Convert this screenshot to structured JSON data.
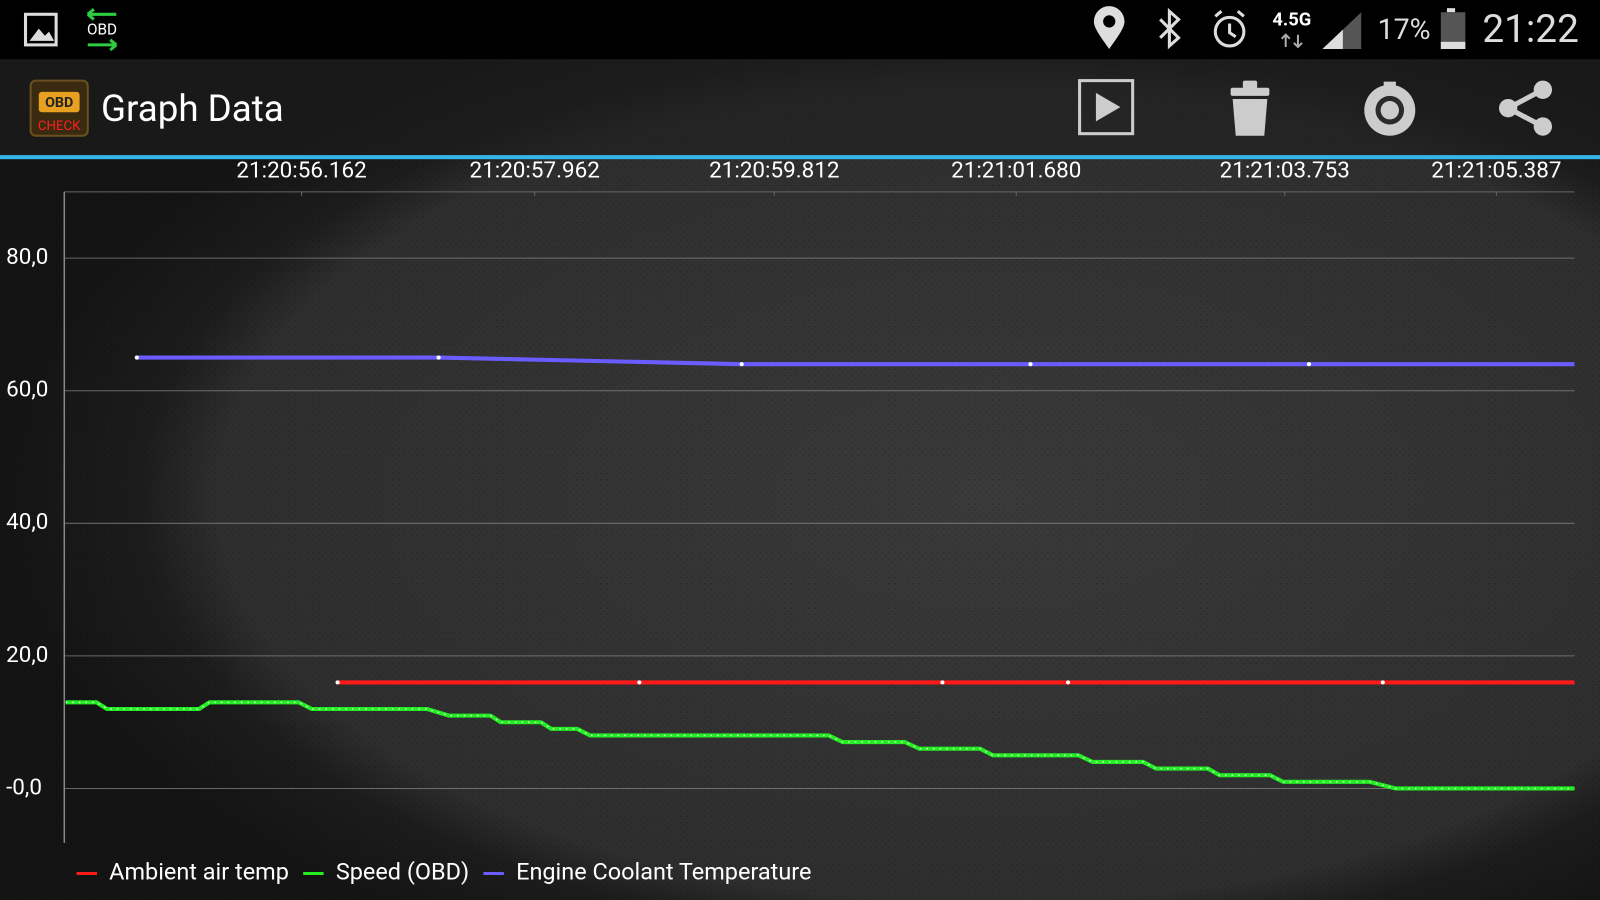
{
  "status_bar": {
    "app_icon_label": "OBD",
    "network": "4.5G",
    "battery": "17%",
    "time": "21:22"
  },
  "app_bar": {
    "logo_top": "OBD",
    "logo_bottom": "CHECK",
    "title": "Graph Data"
  },
  "chart_data": {
    "type": "line",
    "xlim": [
      76854.33,
      76865.99
    ],
    "xticks": [
      {
        "value": 76856.162,
        "label": "21:20:56.162"
      },
      {
        "value": 76857.962,
        "label": "21:20:57.962"
      },
      {
        "value": 76859.812,
        "label": "21:20:59.812"
      },
      {
        "value": 76861.68,
        "label": "21:21:01.680"
      },
      {
        "value": 76863.753,
        "label": "21:21:03.753"
      },
      {
        "value": 76865.387,
        "label": "21:21:05.387"
      }
    ],
    "ylim": [
      -8.2,
      90
    ],
    "yticks": [
      {
        "value": 0,
        "label": "-0,0"
      },
      {
        "value": 20,
        "label": "20,0"
      },
      {
        "value": 40,
        "label": "40,0"
      },
      {
        "value": 60,
        "label": "60,0"
      },
      {
        "value": 80,
        "label": "80,0"
      }
    ],
    "grid": true,
    "legend": "bottom-left",
    "series": [
      {
        "name": "Ambient air temp",
        "color": "#ff1a1a",
        "markers": true,
        "x": [
          76856.44,
          76858.77,
          76861.11,
          76862.08,
          76864.51,
          76865.99
        ],
        "values": [
          16,
          16,
          16,
          16,
          16,
          16
        ]
      },
      {
        "name": "Speed (OBD)",
        "color": "#22ee22",
        "markers": false,
        "x": [
          76854.34,
          76854.58,
          76854.66,
          76855.37,
          76855.45,
          76856.14,
          76856.24,
          76857.13,
          76857.3,
          76857.62,
          76857.7,
          76858.01,
          76858.09,
          76858.29,
          76858.39,
          76860.23,
          76860.34,
          76860.82,
          76860.93,
          76861.4,
          76861.5,
          76862.16,
          76862.27,
          76862.66,
          76862.76,
          76863.16,
          76863.25,
          76863.64,
          76863.74,
          76864.41,
          76864.61,
          76865.99
        ],
        "values": [
          13,
          13,
          12,
          12,
          13,
          13,
          12,
          12,
          11,
          11,
          10,
          10,
          9,
          9,
          8,
          8,
          7,
          7,
          6,
          6,
          5,
          5,
          4,
          4,
          3,
          3,
          2,
          2,
          1,
          1,
          0,
          0
        ]
      },
      {
        "name": "Engine Coolant Temperature",
        "color": "#6a5cff",
        "markers": true,
        "x": [
          76854.89,
          76857.22,
          76859.56,
          76861.79,
          76863.94,
          76865.99
        ],
        "values": [
          65,
          65,
          64,
          64,
          64,
          64
        ]
      }
    ]
  }
}
